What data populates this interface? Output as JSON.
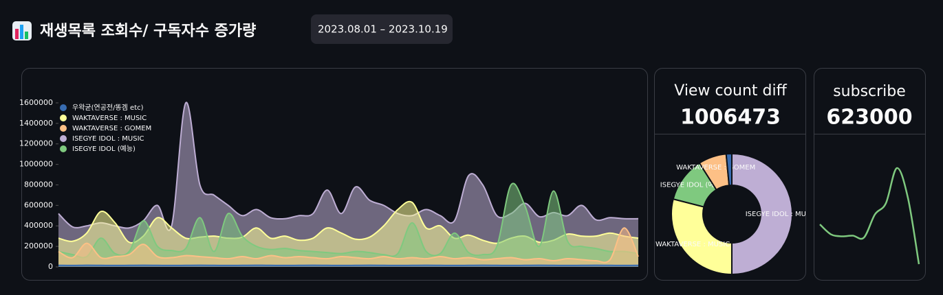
{
  "header": {
    "title": "재생목록 조회수/ 구독자수 증가량",
    "date_range": "2023.08.01 – 2023.10.19"
  },
  "chart_data": [
    {
      "type": "area",
      "ylim": [
        0,
        1660000
      ],
      "yticks": [
        0,
        200000,
        400000,
        600000,
        800000,
        1000000,
        1200000,
        1400000,
        1600000
      ],
      "series": [
        {
          "name": "우왁굳(연공전/똥겜 etc)",
          "color": "#386cb0",
          "values": [
            15000,
            14000,
            16000,
            15000,
            14000,
            15000,
            16000,
            15000,
            14000,
            15000,
            16000,
            15000,
            14000,
            15000,
            16000,
            15000,
            14000,
            15000,
            16000,
            15000,
            14000,
            15000,
            16000,
            15000,
            14000,
            15000,
            16000,
            15000,
            14000,
            15000,
            16000,
            15000,
            14000,
            15000,
            16000,
            15000,
            14000,
            15000,
            16000,
            15000,
            14000,
            15000
          ]
        },
        {
          "name": "WAKTAVERSE : MUSIC",
          "color": "#ffff99",
          "values": [
            280000,
            250000,
            330000,
            540000,
            430000,
            240000,
            300000,
            480000,
            380000,
            280000,
            290000,
            300000,
            280000,
            290000,
            380000,
            280000,
            300000,
            260000,
            280000,
            380000,
            330000,
            270000,
            290000,
            400000,
            560000,
            630000,
            380000,
            400000,
            280000,
            310000,
            260000,
            230000,
            280000,
            300000,
            240000,
            260000,
            320000,
            300000,
            300000,
            330000,
            300000,
            280000
          ]
        },
        {
          "name": "WAKTAVERSE : GOMEM",
          "color": "#fdc086",
          "values": [
            150000,
            90000,
            230000,
            90000,
            100000,
            120000,
            220000,
            100000,
            90000,
            110000,
            100000,
            90000,
            80000,
            100000,
            80000,
            110000,
            90000,
            100000,
            90000,
            80000,
            100000,
            90000,
            80000,
            100000,
            80000,
            90000,
            80000,
            100000,
            80000,
            90000,
            70000,
            80000,
            90000,
            70000,
            80000,
            60000,
            80000,
            70000,
            60000,
            70000,
            380000,
            100000
          ]
        },
        {
          "name": "ISEGYE IDOL : MUSIC",
          "color": "#beaed4",
          "values": [
            520000,
            390000,
            400000,
            430000,
            400000,
            380000,
            450000,
            600000,
            400000,
            1600000,
            800000,
            700000,
            600000,
            500000,
            560000,
            480000,
            470000,
            500000,
            520000,
            750000,
            520000,
            780000,
            650000,
            600000,
            520000,
            500000,
            560000,
            500000,
            450000,
            890000,
            800000,
            500000,
            520000,
            620000,
            490000,
            530000,
            500000,
            600000,
            460000,
            480000,
            470000,
            470000
          ]
        },
        {
          "name": "ISEGYE IDOL (예능)",
          "color": "#7fc97f",
          "values": [
            150000,
            120000,
            100000,
            280000,
            130000,
            150000,
            450000,
            200000,
            160000,
            180000,
            480000,
            150000,
            520000,
            300000,
            200000,
            170000,
            180000,
            160000,
            150000,
            140000,
            130000,
            150000,
            140000,
            120000,
            130000,
            430000,
            150000,
            130000,
            330000,
            140000,
            120000,
            200000,
            800000,
            590000,
            200000,
            740000,
            250000,
            200000,
            180000,
            150000,
            150000,
            130000
          ]
        }
      ]
    },
    {
      "type": "pie",
      "title": "View count diff",
      "total": 1006473,
      "categories": [
        "ISEGYE IDOL : MUSIC",
        "WAKTAVERSE : MUSIC",
        "ISEGYE IDOL (예능)",
        "WAKTAVERSE : GOMEM",
        null
      ],
      "values": [
        50,
        29,
        12,
        7.5,
        1.5
      ],
      "colors": [
        "#beaed4",
        "#ffff99",
        "#7fc97f",
        "#fdc086",
        "#386cb0"
      ]
    },
    {
      "type": "line",
      "title": "subscribe",
      "total": 623000,
      "color": "#7fc97f",
      "values": [
        60,
        45,
        42,
        43,
        40,
        75,
        92,
        145,
        100,
        0
      ]
    }
  ]
}
